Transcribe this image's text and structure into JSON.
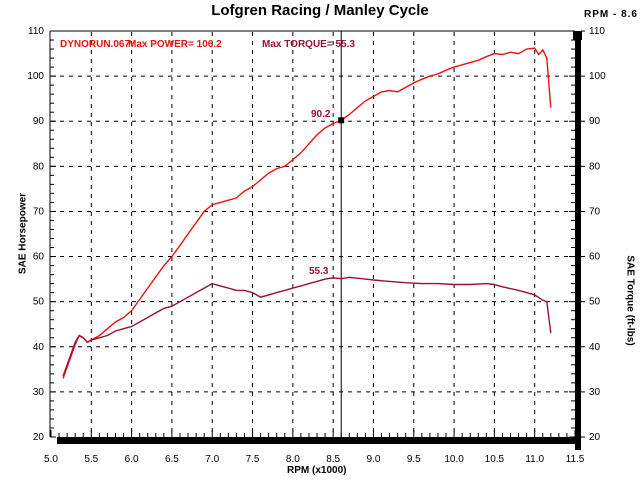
{
  "title": "Lofgren Racing / Manley Cycle",
  "cursor_readout": "RPM - 8.6",
  "annotations": {
    "run_file": "DYNORUN.067",
    "max_power_label": "Max POWER= 106.2",
    "max_torque_label": "Max TORQUE= 55.3",
    "cursor_power_value": "90.2",
    "peak_torque_value": "55.3"
  },
  "axes": {
    "x": {
      "title": "RPM (x1000)",
      "min": 5.0,
      "max": 11.5,
      "major_step": 0.5,
      "minor_step": 0.1,
      "tick_labels": [
        "5.0",
        "5.5",
        "6.0",
        "6.5",
        "7.0",
        "7.5",
        "8.0",
        "8.5",
        "9.0",
        "9.5",
        "10.0",
        "10.5",
        "11.0",
        "11.5"
      ]
    },
    "y_left": {
      "title": "SAE Horsepower",
      "min": 20,
      "max": 110,
      "major_step": 10,
      "minor_step": 2,
      "tick_labels": [
        "110",
        "100",
        "90",
        "80",
        "70",
        "60",
        "50",
        "40",
        "30",
        "20"
      ]
    },
    "y_right": {
      "title": "SAE Torque (ft-lbs)",
      "min": 20,
      "max": 110,
      "major_step": 10,
      "minor_step": 2,
      "tick_labels": [
        "110",
        "100",
        "90",
        "80",
        "70",
        "60",
        "50",
        "40",
        "30",
        "20"
      ]
    }
  },
  "colors": {
    "power": "#ee1111",
    "torque": "#991133",
    "axis": "#000000",
    "background": "#ffffff"
  },
  "chart_data": {
    "type": "line",
    "title": "Lofgren Racing / Manley Cycle",
    "xlabel": "RPM (x1000)",
    "ylabel_left": "SAE Horsepower",
    "ylabel_right": "SAE Torque (ft-lbs)",
    "xlim": [
      5.0,
      11.5
    ],
    "ylim": [
      20,
      110
    ],
    "grid": "dashed at every major tick, both directions",
    "legend_position": "none",
    "max_power": 106.2,
    "max_torque": 55.3,
    "cursor": {
      "rpm": 8.6,
      "power": 90.2
    },
    "series": [
      {
        "name": "Power (hp)",
        "color": "#ee1111",
        "x": [
          5.15,
          5.2,
          5.3,
          5.35,
          5.4,
          5.45,
          5.5,
          5.6,
          5.7,
          5.8,
          5.9,
          6.0,
          6.1,
          6.2,
          6.3,
          6.4,
          6.5,
          6.6,
          6.7,
          6.8,
          6.9,
          7.0,
          7.1,
          7.2,
          7.3,
          7.4,
          7.5,
          7.6,
          7.7,
          7.8,
          7.9,
          8.0,
          8.1,
          8.2,
          8.3,
          8.4,
          8.5,
          8.6,
          8.7,
          8.8,
          8.9,
          9.0,
          9.1,
          9.2,
          9.3,
          9.4,
          9.5,
          9.6,
          9.7,
          9.8,
          9.9,
          10.0,
          10.1,
          10.2,
          10.3,
          10.4,
          10.5,
          10.6,
          10.7,
          10.8,
          10.9,
          11.0,
          11.05,
          11.1,
          11.15,
          11.2
        ],
        "values": [
          33,
          35.5,
          40.5,
          42.5,
          42,
          41,
          41.5,
          42.5,
          44,
          45.5,
          46.5,
          48,
          50.5,
          53,
          55.5,
          58,
          60,
          62.5,
          65,
          67.5,
          70,
          71.5,
          72,
          72.5,
          73,
          74.5,
          75.5,
          77,
          78.5,
          79.5,
          80,
          81.5,
          83,
          85,
          87,
          88.5,
          89.5,
          90.2,
          91.5,
          93,
          94.5,
          95.5,
          96.5,
          96.8,
          96.5,
          97.5,
          98.5,
          99.3,
          100,
          100.5,
          101.3,
          102,
          102.5,
          103,
          103.5,
          104.3,
          105,
          104.8,
          105.3,
          105,
          106,
          106.2,
          104.8,
          105.8,
          104,
          93
        ]
      },
      {
        "name": "Torque (ft-lbs)",
        "color": "#991133",
        "x": [
          5.15,
          5.2,
          5.3,
          5.35,
          5.4,
          5.45,
          5.5,
          5.6,
          5.7,
          5.8,
          5.9,
          6.0,
          6.1,
          6.2,
          6.3,
          6.4,
          6.5,
          6.6,
          6.7,
          6.8,
          6.9,
          7.0,
          7.1,
          7.2,
          7.3,
          7.4,
          7.5,
          7.6,
          7.7,
          7.8,
          7.9,
          8.0,
          8.1,
          8.2,
          8.3,
          8.4,
          8.5,
          8.6,
          8.7,
          8.8,
          8.9,
          9.0,
          9.2,
          9.4,
          9.6,
          9.8,
          10.0,
          10.2,
          10.4,
          10.5,
          10.6,
          10.8,
          10.9,
          11.0,
          11.1,
          11.15,
          11.2
        ],
        "values": [
          33.5,
          36,
          41,
          42.5,
          42,
          41,
          41.5,
          42,
          42.5,
          43.5,
          44,
          44.5,
          45.5,
          46.5,
          47.5,
          48.5,
          49,
          50,
          51,
          52,
          53,
          54,
          53.5,
          53,
          52.5,
          52.5,
          52,
          51,
          51.5,
          52,
          52.5,
          53,
          53.5,
          54,
          54.5,
          55,
          55.3,
          55.1,
          55.4,
          55.2,
          55,
          54.8,
          54.5,
          54.2,
          54,
          54,
          53.8,
          53.8,
          54,
          53.8,
          53.3,
          52.5,
          52,
          51.5,
          50.3,
          50,
          43
        ]
      }
    ]
  }
}
